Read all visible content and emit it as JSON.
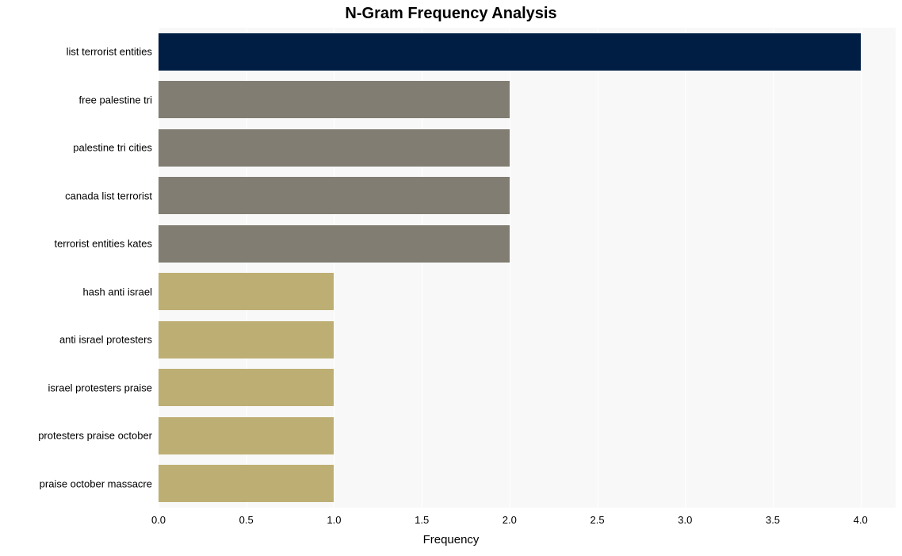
{
  "chart": {
    "type": "bar-horizontal",
    "title": "N-Gram Frequency Analysis",
    "title_fontsize": 20,
    "title_fontweight": 700,
    "xlabel": "Frequency",
    "xlabel_fontsize": 15,
    "ylabel_fontsize": 13,
    "xtick_fontsize": 13,
    "background_color": "#ffffff",
    "plot_background_color": "#f8f8f8",
    "grid_color": "#ffffff",
    "xlim": [
      0,
      4.2
    ],
    "xtick_step": 0.5,
    "xtick_labels": [
      "0.0",
      "0.5",
      "1.0",
      "1.5",
      "2.0",
      "2.5",
      "3.0",
      "3.5",
      "4.0"
    ],
    "xtick_values": [
      0.0,
      0.5,
      1.0,
      1.5,
      2.0,
      2.5,
      3.0,
      3.5,
      4.0
    ],
    "bar_height_ratio": 0.78,
    "bars": [
      {
        "label": "list terrorist entities",
        "value": 4,
        "color": "#001e43"
      },
      {
        "label": "free palestine tri",
        "value": 2,
        "color": "#827d73"
      },
      {
        "label": "palestine tri cities",
        "value": 2,
        "color": "#827d73"
      },
      {
        "label": "canada list terrorist",
        "value": 2,
        "color": "#827d73"
      },
      {
        "label": "terrorist entities kates",
        "value": 2,
        "color": "#827d73"
      },
      {
        "label": "hash anti israel",
        "value": 1,
        "color": "#bdaf74"
      },
      {
        "label": "anti israel protesters",
        "value": 1,
        "color": "#bdaf74"
      },
      {
        "label": "israel protesters praise",
        "value": 1,
        "color": "#bdaf74"
      },
      {
        "label": "protesters praise october",
        "value": 1,
        "color": "#bdaf74"
      },
      {
        "label": "praise october massacre",
        "value": 1,
        "color": "#bdaf74"
      }
    ]
  }
}
